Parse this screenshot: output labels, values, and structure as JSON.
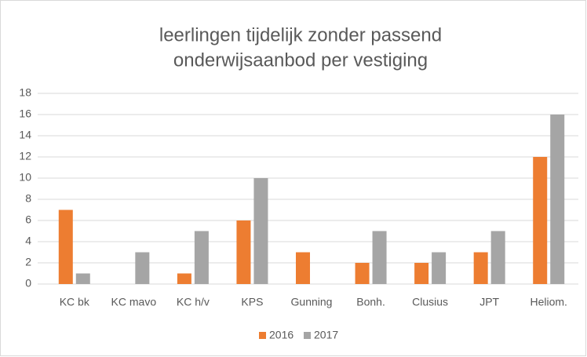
{
  "chart_data": {
    "type": "bar",
    "title": [
      "leerlingen tijdelijk zonder passend",
      "onderwijsaanbod per vestiging"
    ],
    "categories": [
      "KC bk",
      "KC mavo",
      "KC h/v",
      "KPS",
      "Gunning",
      "Bonh.",
      "Clusius",
      "JPT",
      "Heliom."
    ],
    "series": [
      {
        "name": "2016",
        "color": "#ed7d31",
        "values": [
          7,
          0,
          1,
          6,
          3,
          2,
          2,
          3,
          12
        ]
      },
      {
        "name": "2017",
        "color": "#a5a5a5",
        "values": [
          1,
          3,
          5,
          10,
          0,
          5,
          3,
          5,
          16
        ]
      }
    ],
    "ylim": [
      0,
      18
    ],
    "yticks": [
      0,
      2,
      4,
      6,
      8,
      10,
      12,
      14,
      16,
      18
    ],
    "grid": true,
    "legend": "bottom"
  }
}
